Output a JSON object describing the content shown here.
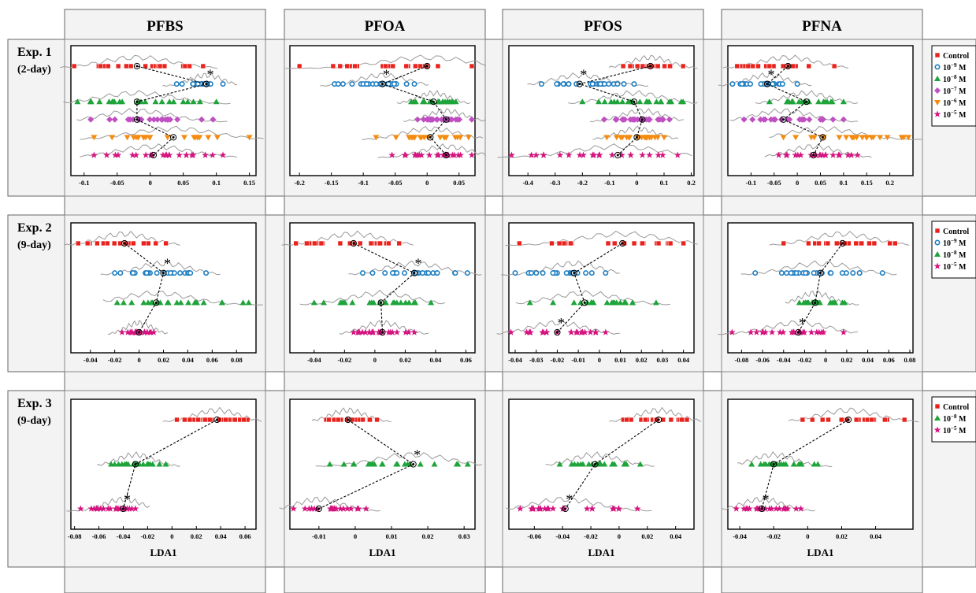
{
  "columns": [
    "PFBS",
    "PFOA",
    "PFOS",
    "PFNA"
  ],
  "xlabel": "LDA1",
  "colors": {
    "Control": "#e8221d",
    "1e-9": "#1f7fc2",
    "1e-8": "#1ea43a",
    "1e-7": "#c04fc2",
    "1e-6": "#f58c12",
    "1e-5": "#d4147f"
  },
  "chart_data": {
    "type": "scatter",
    "experiments": [
      {
        "label": "Exp. 1",
        "sublabel": "(2-day)",
        "legend": [
          {
            "key": "Control",
            "base": "Control",
            "exp": ""
          },
          {
            "key": "1e-9",
            "base": "10",
            "exp": "−9",
            "unit": " M"
          },
          {
            "key": "1e-8",
            "base": "10",
            "exp": "−8",
            "unit": " M"
          },
          {
            "key": "1e-7",
            "base": "10",
            "exp": "−7",
            "unit": " M"
          },
          {
            "key": "1e-6",
            "base": "10",
            "exp": "−6",
            "unit": " M"
          },
          {
            "key": "1e-5",
            "base": "10",
            "exp": "−5",
            "unit": " M"
          }
        ],
        "panels": [
          {
            "compound": "PFBS",
            "xlim": [
              -0.12,
              0.16
            ],
            "ticks": [
              -0.1,
              -0.05,
              0,
              0.05,
              0.1,
              0.15
            ],
            "tick_labels": [
              "-0.1",
              "-0.05",
              "0",
              "0.05",
              "0.1",
              "0.15"
            ],
            "groups": [
              {
                "key": "Control",
                "min": -0.115,
                "max": 0.08,
                "mean": -0.02,
                "star": false
              },
              {
                "key": "1e-9",
                "min": 0.04,
                "max": 0.11,
                "mean": 0.085,
                "star": true
              },
              {
                "key": "1e-8",
                "min": -0.11,
                "max": 0.1,
                "mean": -0.02,
                "star": false
              },
              {
                "key": "1e-7",
                "min": -0.09,
                "max": 0.095,
                "mean": -0.02,
                "star": false
              },
              {
                "key": "1e-6",
                "min": -0.085,
                "max": 0.15,
                "mean": 0.035,
                "star": false
              },
              {
                "key": "1e-5",
                "min": -0.085,
                "max": 0.11,
                "mean": 0.005,
                "star": false
              }
            ]
          },
          {
            "compound": "PFOA",
            "xlim": [
              -0.215,
              0.075
            ],
            "ticks": [
              -0.2,
              -0.15,
              -0.1,
              -0.05,
              0,
              0.05
            ],
            "tick_labels": [
              "-0.2",
              "-0.15",
              "-0.1",
              "-0.05",
              "0",
              "0.05"
            ],
            "groups": [
              {
                "key": "Control",
                "min": -0.2,
                "max": 0.07,
                "mean": 0.0,
                "star": false
              },
              {
                "key": "1e-9",
                "min": -0.145,
                "max": -0.02,
                "mean": -0.07,
                "star": true
              },
              {
                "key": "1e-8",
                "min": -0.025,
                "max": 0.045,
                "mean": 0.01,
                "star": false
              },
              {
                "key": "1e-7",
                "min": -0.015,
                "max": 0.07,
                "mean": 0.03,
                "star": false
              },
              {
                "key": "1e-6",
                "min": -0.08,
                "max": 0.065,
                "mean": 0.005,
                "star": false
              },
              {
                "key": "1e-5",
                "min": -0.055,
                "max": 0.07,
                "mean": 0.03,
                "star": false
              }
            ]
          },
          {
            "compound": "PFOS",
            "xlim": [
              -0.47,
              0.21
            ],
            "ticks": [
              -0.4,
              -0.3,
              -0.2,
              -0.1,
              0,
              0.1,
              0.2
            ],
            "tick_labels": [
              "-0.4",
              "-0.3",
              "-0.2",
              "-0.1",
              "0",
              "0.1",
              "0.2"
            ],
            "groups": [
              {
                "key": "Control",
                "min": -0.05,
                "max": 0.17,
                "mean": 0.05,
                "star": false
              },
              {
                "key": "1e-9",
                "min": -0.35,
                "max": -0.01,
                "mean": -0.21,
                "star": true
              },
              {
                "key": "1e-8",
                "min": -0.2,
                "max": 0.17,
                "mean": -0.01,
                "star": false
              },
              {
                "key": "1e-7",
                "min": -0.12,
                "max": 0.12,
                "mean": 0.02,
                "star": false
              },
              {
                "key": "1e-6",
                "min": -0.11,
                "max": 0.1,
                "mean": 0.0,
                "star": false
              },
              {
                "key": "1e-5",
                "min": -0.46,
                "max": 0.15,
                "mean": -0.07,
                "star": false
              }
            ]
          },
          {
            "compound": "PFNA",
            "xlim": [
              -0.15,
              0.25
            ],
            "ticks": [
              -0.1,
              -0.05,
              0,
              0.05,
              0.1,
              0.15,
              0.2
            ],
            "tick_labels": [
              "-0.1",
              "-0.05",
              "0",
              "0.05",
              "0.1",
              "0.15",
              "0.2"
            ],
            "groups": [
              {
                "key": "Control",
                "min": -0.13,
                "max": 0.08,
                "mean": -0.02,
                "star": false
              },
              {
                "key": "1e-9",
                "min": -0.14,
                "max": 0.0,
                "mean": -0.065,
                "star": true
              },
              {
                "key": "1e-8",
                "min": -0.06,
                "max": 0.1,
                "mean": 0.02,
                "star": false
              },
              {
                "key": "1e-7",
                "min": -0.115,
                "max": 0.1,
                "mean": -0.03,
                "star": false
              },
              {
                "key": "1e-6",
                "min": -0.03,
                "max": 0.24,
                "mean": 0.055,
                "star": false
              },
              {
                "key": "1e-5",
                "min": -0.04,
                "max": 0.13,
                "mean": 0.035,
                "star": false
              }
            ]
          }
        ]
      },
      {
        "label": "Exp. 2",
        "sublabel": "(9-day)",
        "legend": [
          {
            "key": "Control",
            "base": "Control",
            "exp": ""
          },
          {
            "key": "1e-9",
            "base": "10",
            "exp": "−9",
            "unit": " M"
          },
          {
            "key": "1e-8",
            "base": "10",
            "exp": "−8",
            "unit": " M"
          },
          {
            "key": "1e-5",
            "base": "10",
            "exp": "−5",
            "unit": " M"
          }
        ],
        "panels": [
          {
            "compound": "PFBS",
            "xlim": [
              -0.056,
              0.096
            ],
            "ticks": [
              -0.04,
              -0.02,
              0,
              0.02,
              0.04,
              0.06,
              0.08
            ],
            "tick_labels": [
              "-0.04",
              "-0.02",
              "0",
              "0.02",
              "0.04",
              "0.06",
              "0.08"
            ],
            "groups": [
              {
                "key": "Control",
                "min": -0.05,
                "max": 0.022,
                "mean": -0.012,
                "star": false
              },
              {
                "key": "1e-9",
                "min": -0.02,
                "max": 0.055,
                "mean": 0.02,
                "star": true
              },
              {
                "key": "1e-8",
                "min": -0.018,
                "max": 0.09,
                "mean": 0.014,
                "star": false
              },
              {
                "key": "1e-5",
                "min": -0.014,
                "max": 0.012,
                "mean": 0.0,
                "star": false
              }
            ]
          },
          {
            "compound": "PFOA",
            "xlim": [
              -0.056,
              0.066
            ],
            "ticks": [
              -0.04,
              -0.02,
              0,
              0.02,
              0.04,
              0.06
            ],
            "tick_labels": [
              "-0.04",
              "-0.02",
              "0",
              "0.02",
              "0.04",
              "0.06"
            ],
            "groups": [
              {
                "key": "Control",
                "min": -0.052,
                "max": 0.016,
                "mean": -0.014,
                "star": false
              },
              {
                "key": "1e-9",
                "min": -0.008,
                "max": 0.061,
                "mean": 0.026,
                "star": true
              },
              {
                "key": "1e-8",
                "min": -0.04,
                "max": 0.037,
                "mean": 0.004,
                "star": false
              },
              {
                "key": "1e-5",
                "min": -0.014,
                "max": 0.026,
                "mean": 0.005,
                "star": false
              }
            ]
          },
          {
            "compound": "PFOS",
            "xlim": [
              -0.043,
              0.045
            ],
            "ticks": [
              -0.04,
              -0.03,
              -0.02,
              -0.01,
              0,
              0.01,
              0.02,
              0.03,
              0.04
            ],
            "tick_labels": [
              "-0.04",
              "-0.03",
              "-0.02",
              "-0.01",
              "0",
              "0.01",
              "0.02",
              "0.03",
              "0.04"
            ],
            "groups": [
              {
                "key": "Control",
                "min": -0.038,
                "max": 0.04,
                "mean": 0.011,
                "star": false
              },
              {
                "key": "1e-9",
                "min": -0.04,
                "max": 0.003,
                "mean": -0.012,
                "star": false
              },
              {
                "key": "1e-8",
                "min": -0.033,
                "max": 0.027,
                "mean": -0.007,
                "star": false
              },
              {
                "key": "1e-5",
                "min": -0.042,
                "max": 0.003,
                "mean": -0.02,
                "star": true
              }
            ]
          },
          {
            "compound": "PFNA",
            "xlim": [
              -0.093,
              0.083
            ],
            "ticks": [
              -0.08,
              -0.06,
              -0.04,
              -0.02,
              0,
              0.02,
              0.04,
              0.06,
              0.08
            ],
            "tick_labels": [
              "-0.08",
              "-0.06",
              "-0.04",
              "-0.02",
              "0",
              "0.02",
              "0.04",
              "0.06",
              "0.08"
            ],
            "groups": [
              {
                "key": "Control",
                "min": -0.04,
                "max": 0.066,
                "mean": 0.016,
                "star": false
              },
              {
                "key": "1e-9",
                "min": -0.067,
                "max": 0.054,
                "mean": -0.005,
                "star": false
              },
              {
                "key": "1e-8",
                "min": -0.025,
                "max": 0.018,
                "mean": -0.01,
                "star": false
              },
              {
                "key": "1e-5",
                "min": -0.089,
                "max": 0.017,
                "mean": -0.026,
                "star": true
              }
            ]
          }
        ]
      },
      {
        "label": "Exp. 3",
        "sublabel": "(9-day)",
        "legend": [
          {
            "key": "Control",
            "base": "Control",
            "exp": ""
          },
          {
            "key": "1e-8",
            "base": "10",
            "exp": "−8",
            "unit": " M"
          },
          {
            "key": "1e-5",
            "base": "10",
            "exp": "−5",
            "unit": " M"
          }
        ],
        "panels": [
          {
            "compound": "PFBS",
            "xlim": [
              -0.083,
              0.069
            ],
            "ticks": [
              -0.08,
              -0.06,
              -0.04,
              -0.02,
              0,
              0.02,
              0.04,
              0.06
            ],
            "tick_labels": [
              "-0.08",
              "-0.06",
              "-0.04",
              "-0.02",
              "0",
              "0.02",
              "0.04",
              "0.06"
            ],
            "groups": [
              {
                "key": "Control",
                "min": 0.004,
                "max": 0.062,
                "mean": 0.037,
                "star": false
              },
              {
                "key": "1e-8",
                "min": -0.05,
                "max": -0.005,
                "mean": -0.03,
                "star": false
              },
              {
                "key": "1e-5",
                "min": -0.075,
                "max": -0.03,
                "mean": -0.04,
                "star": true
              }
            ]
          },
          {
            "compound": "PFOA",
            "xlim": [
              -0.018,
              0.033
            ],
            "ticks": [
              -0.01,
              0,
              0.01,
              0.02,
              0.03
            ],
            "tick_labels": [
              "-0.01",
              "0",
              "0.01",
              "0.02",
              "0.03"
            ],
            "groups": [
              {
                "key": "Control",
                "min": -0.008,
                "max": 0.006,
                "mean": -0.002,
                "star": false
              },
              {
                "key": "1e-8",
                "min": -0.007,
                "max": 0.031,
                "mean": 0.016,
                "star": true
              },
              {
                "key": "1e-5",
                "min": -0.017,
                "max": 0.003,
                "mean": -0.01,
                "star": false
              }
            ]
          },
          {
            "compound": "PFOS",
            "xlim": [
              -0.078,
              0.053
            ],
            "ticks": [
              -0.06,
              -0.04,
              -0.02,
              0,
              0.02,
              0.04
            ],
            "tick_labels": [
              "-0.06",
              "-0.04",
              "-0.02",
              "0",
              "0.02",
              "0.04"
            ],
            "groups": [
              {
                "key": "Control",
                "min": 0.003,
                "max": 0.048,
                "mean": 0.028,
                "star": false
              },
              {
                "key": "1e-8",
                "min": -0.042,
                "max": 0.015,
                "mean": -0.017,
                "star": false
              },
              {
                "key": "1e-5",
                "min": -0.07,
                "max": 0.013,
                "mean": -0.038,
                "star": true
              }
            ]
          },
          {
            "compound": "PFNA",
            "xlim": [
              -0.047,
              0.062
            ],
            "ticks": [
              -0.04,
              -0.02,
              0,
              0.02,
              0.04
            ],
            "tick_labels": [
              "-0.04",
              "-0.02",
              "0",
              "0.02",
              "0.04"
            ],
            "groups": [
              {
                "key": "Control",
                "min": -0.003,
                "max": 0.057,
                "mean": 0.024,
                "star": false
              },
              {
                "key": "1e-8",
                "min": -0.033,
                "max": 0.006,
                "mean": -0.02,
                "star": false
              },
              {
                "key": "1e-5",
                "min": -0.042,
                "max": -0.004,
                "mean": -0.027,
                "star": true
              }
            ]
          }
        ]
      }
    ]
  }
}
